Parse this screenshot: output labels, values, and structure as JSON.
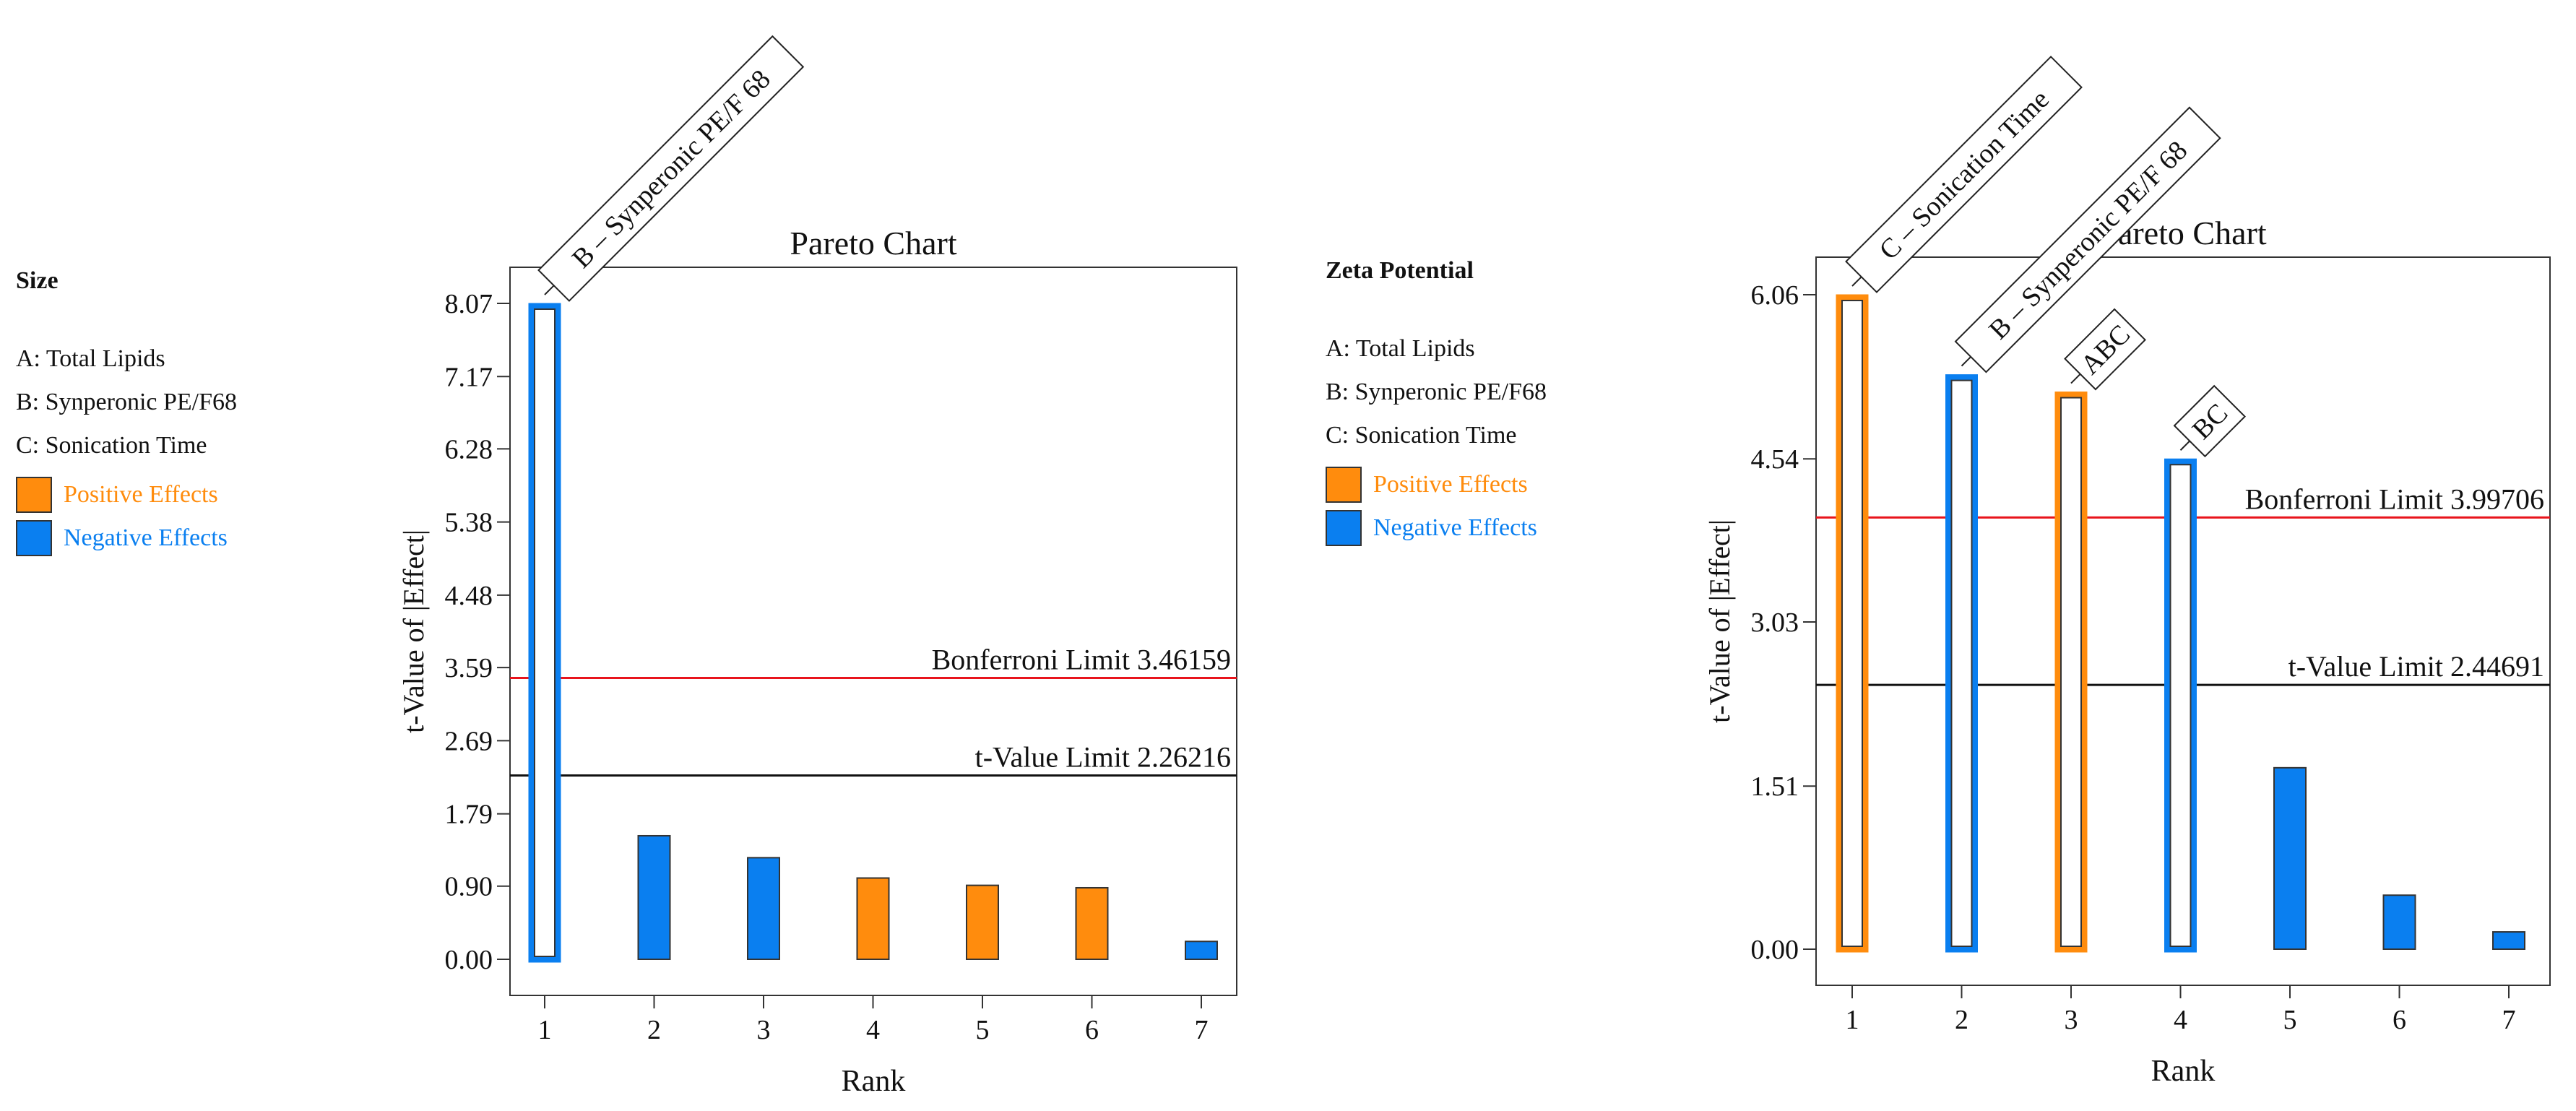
{
  "legends": [
    {
      "title": "Size",
      "factors": [
        "A: Total Lipids",
        "B: Synperonic PE/F68",
        "C: Sonication Time"
      ],
      "positive_label": "Positive Effects",
      "negative_label": "Negative Effects"
    },
    {
      "title": "Zeta Potential",
      "factors": [
        "A: Total Lipids",
        "B: Synperonic PE/F68",
        "C: Sonication Time"
      ],
      "positive_label": "Positive Effects",
      "negative_label": "Negative Effects"
    }
  ],
  "colors": {
    "positive": "#ff8c0d",
    "negative": "#0a7ff0",
    "bonferroni": "#e8141c",
    "tlimit": "#111111"
  },
  "chart_data": [
    {
      "type": "bar",
      "title": "Pareto Chart",
      "xlabel": "Rank",
      "ylabel": "t-Value of |Effect|",
      "ylim": [
        0,
        8.07
      ],
      "yticks": [
        "0.00",
        "0.90",
        "1.79",
        "2.69",
        "3.59",
        "4.48",
        "5.38",
        "6.28",
        "7.17",
        "8.07"
      ],
      "categories": [
        "1",
        "2",
        "3",
        "4",
        "5",
        "6",
        "7"
      ],
      "values": [
        8.07,
        1.52,
        1.25,
        1.0,
        0.91,
        0.88,
        0.22
      ],
      "effect": [
        "negative",
        "negative",
        "negative",
        "positive",
        "positive",
        "positive",
        "negative"
      ],
      "significant": [
        true,
        false,
        false,
        false,
        false,
        false,
        false
      ],
      "labels": [
        "B – Synperonic PE/F 68",
        "",
        "",
        "",
        "",
        "",
        ""
      ],
      "bonferroni": {
        "value": 3.46159,
        "label": "Bonferroni Limit 3.46159"
      },
      "tlimit": {
        "value": 2.26216,
        "label": "t-Value Limit 2.26216"
      }
    },
    {
      "type": "bar",
      "title": "Pareto Chart",
      "xlabel": "Rank",
      "ylabel": "t-Value of |Effect|",
      "ylim": [
        0,
        6.06
      ],
      "yticks": [
        "0.00",
        "1.51",
        "3.03",
        "4.54",
        "6.06"
      ],
      "categories": [
        "1",
        "2",
        "3",
        "4",
        "5",
        "6",
        "7"
      ],
      "values": [
        6.06,
        5.32,
        5.16,
        4.54,
        1.68,
        0.5,
        0.16
      ],
      "effect": [
        "positive",
        "negative",
        "positive",
        "negative",
        "negative",
        "negative",
        "negative"
      ],
      "significant": [
        true,
        true,
        true,
        true,
        false,
        false,
        false
      ],
      "labels": [
        "C – Sonication Time",
        "B – Synperonic PE/F 68",
        "ABC",
        "BC",
        "",
        "",
        ""
      ],
      "bonferroni": {
        "value": 3.99706,
        "label": "Bonferroni Limit 3.99706"
      },
      "tlimit": {
        "value": 2.44691,
        "label": "t-Value Limit 2.44691"
      }
    }
  ]
}
